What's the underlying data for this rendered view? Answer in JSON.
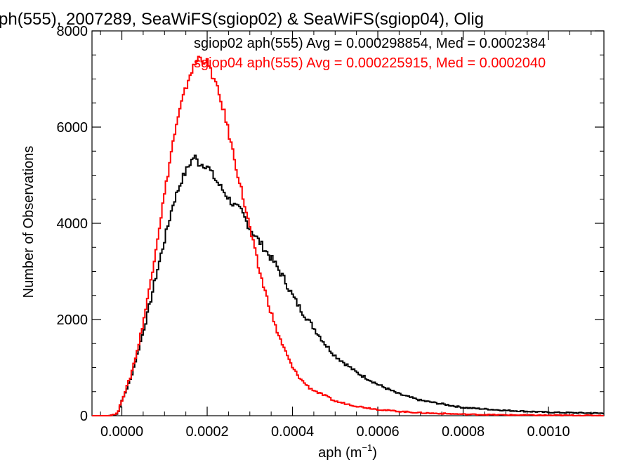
{
  "chart_data": {
    "type": "line",
    "title": "ph(555), 2007289, SeaWiFS(sgiop02) & SeaWiFS(sgiop04), Olig",
    "xlabel": "aph (m",
    "xlabel_sup": "−1",
    "xlabel_close": ")",
    "ylabel": "Number of Observations",
    "xlim": [
      -7e-05,
      0.00113
    ],
    "ylim": [
      0,
      8000
    ],
    "xticks": [
      0.0,
      0.0002,
      0.0004,
      0.0006,
      0.0008,
      0.001
    ],
    "xtick_labels": [
      "0.0000",
      "0.0002",
      "0.0004",
      "0.0006",
      "0.0008",
      "0.0010"
    ],
    "yticks": [
      0,
      2000,
      4000,
      6000,
      8000
    ],
    "ytick_labels": [
      "0",
      "2000",
      "4000",
      "6000",
      "8000"
    ],
    "annotations": [
      {
        "text": "sgiop02 aph(555) Avg = 0.000298854, Med = 0.0002384",
        "color": "#000000"
      },
      {
        "text": "sgiop04 aph(555) Avg = 0.000225915, Med = 0.0002040",
        "color": "#ff0000"
      }
    ],
    "series": [
      {
        "color": "#000000",
        "x": [
          -5e-05,
          -3e-05,
          -1e-05,
          0.0,
          2e-05,
          4e-05,
          6e-05,
          8e-05,
          0.0001,
          0.00012,
          0.00014,
          0.00016,
          0.00017,
          0.00018,
          0.0002,
          0.00022,
          0.00024,
          0.00026,
          0.00028,
          0.0003,
          0.00032,
          0.00034,
          0.00036,
          0.00038,
          0.0004,
          0.00042,
          0.00044,
          0.00046,
          0.00048,
          0.0005,
          0.00055,
          0.0006,
          0.00065,
          0.0007,
          0.0008,
          0.0009,
          0.001,
          0.00113
        ],
        "y": [
          0,
          0,
          40,
          300,
          750,
          1400,
          2100,
          2900,
          3650,
          4400,
          4900,
          5250,
          5400,
          5250,
          5200,
          4900,
          4650,
          4400,
          4250,
          3900,
          3650,
          3400,
          3150,
          2850,
          2500,
          2200,
          1950,
          1700,
          1450,
          1250,
          900,
          650,
          450,
          320,
          170,
          110,
          70,
          50
        ]
      },
      {
        "color": "#ff0000",
        "x": [
          -5e-05,
          -3e-05,
          -1e-05,
          0.0,
          2e-05,
          4e-05,
          6e-05,
          8e-05,
          0.0001,
          0.00012,
          0.00014,
          0.00016,
          0.00018,
          0.0002,
          0.00022,
          0.00024,
          0.00026,
          0.00028,
          0.0003,
          0.00032,
          0.00034,
          0.00036,
          0.00038,
          0.0004,
          0.00042,
          0.00044,
          0.00046,
          0.00048,
          0.0005,
          0.00055,
          0.0006,
          0.00065,
          0.0007,
          0.0008,
          0.0009,
          0.001,
          0.00113
        ],
        "y": [
          0,
          0,
          50,
          320,
          800,
          1500,
          2400,
          3500,
          4600,
          5700,
          6500,
          7100,
          7450,
          7350,
          6900,
          6300,
          5500,
          4700,
          3900,
          3100,
          2450,
          1850,
          1400,
          1000,
          750,
          580,
          480,
          400,
          300,
          200,
          130,
          90,
          60,
          30,
          15,
          8,
          5
        ]
      }
    ]
  }
}
